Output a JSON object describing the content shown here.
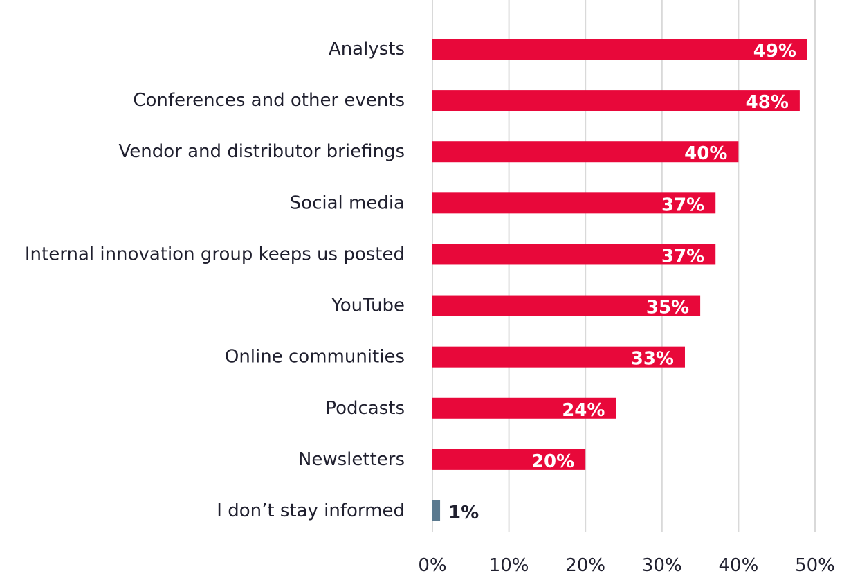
{
  "chart_data": {
    "type": "bar",
    "orientation": "horizontal",
    "categories": [
      "Analysts",
      "Conferences and other events",
      "Vendor and distributor briefings",
      "Social media",
      "Internal innovation group keeps us posted",
      "YouTube",
      "Online communities",
      "Podcasts",
      "Newsletters",
      "I don’t stay informed"
    ],
    "values": [
      49,
      48,
      40,
      37,
      37,
      35,
      33,
      24,
      20,
      1
    ],
    "value_labels": [
      "49%",
      "48%",
      "40%",
      "37%",
      "37%",
      "35%",
      "33%",
      "24%",
      "20%",
      "1%"
    ],
    "xlim": [
      0,
      50
    ],
    "x_ticks": [
      0,
      10,
      20,
      30,
      40,
      50
    ],
    "x_tick_labels": [
      "0%",
      "10%",
      "20%",
      "30%",
      "40%",
      "50%"
    ],
    "grid": "vertical",
    "colors": {
      "bar": "#e8083a",
      "highlight_bar": "#5b7a8f",
      "grid": "#d9d9d9",
      "text": "#1f1f2e",
      "label_inside": "#ffffff"
    }
  }
}
